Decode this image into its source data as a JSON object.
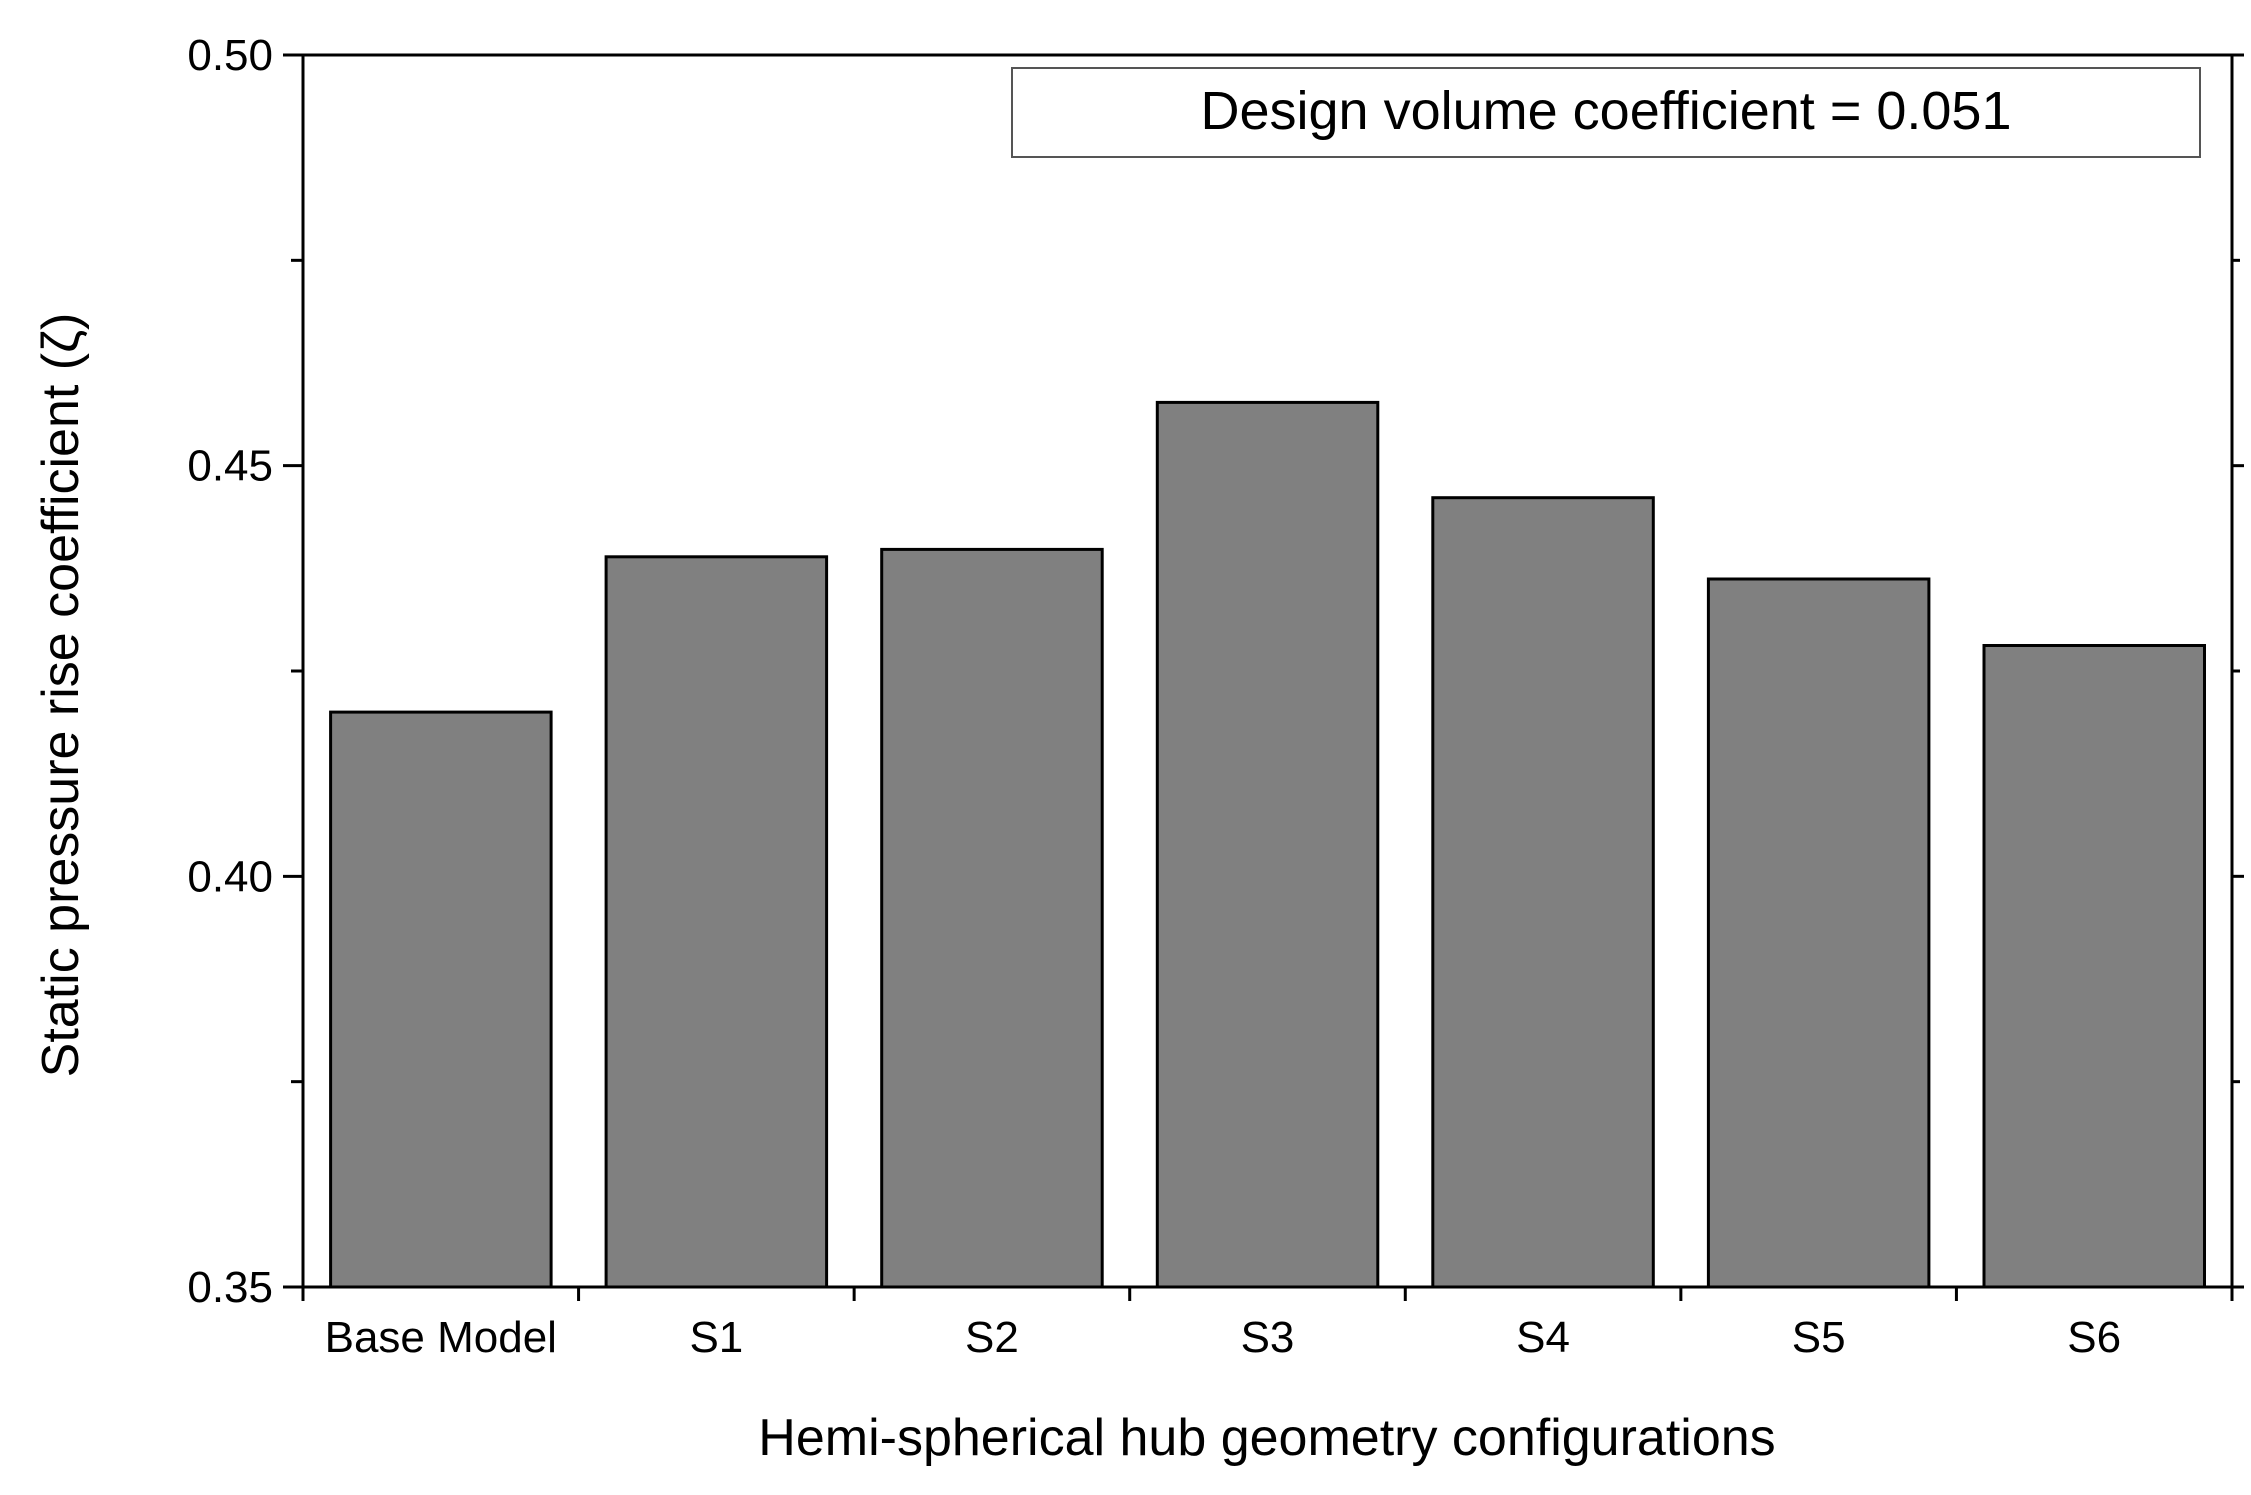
{
  "chart_data": {
    "type": "bar",
    "title": "",
    "xlabel": "Hemi-spherical hub geometry configurations",
    "ylabel": "Static pressure rise coefficient (ζ)",
    "annotation": "Design volume coefficient = 0.051",
    "categories": [
      "Base Model",
      "S1",
      "S2",
      "S3",
      "S4",
      "S5",
      "S6"
    ],
    "values": [
      0.42,
      0.4389,
      0.4398,
      0.4577,
      0.4461,
      0.4362,
      0.4281
    ],
    "ylim": [
      0.35,
      0.5
    ],
    "yticks": [
      0.35,
      0.4,
      0.45,
      0.5
    ],
    "ytick_labels": [
      "0.35",
      "0.40",
      "0.45",
      "0.50"
    ],
    "grid": false,
    "legend": "top-right",
    "colors": {
      "bar_fill": "#808080",
      "bar_stroke": "#000000"
    }
  }
}
